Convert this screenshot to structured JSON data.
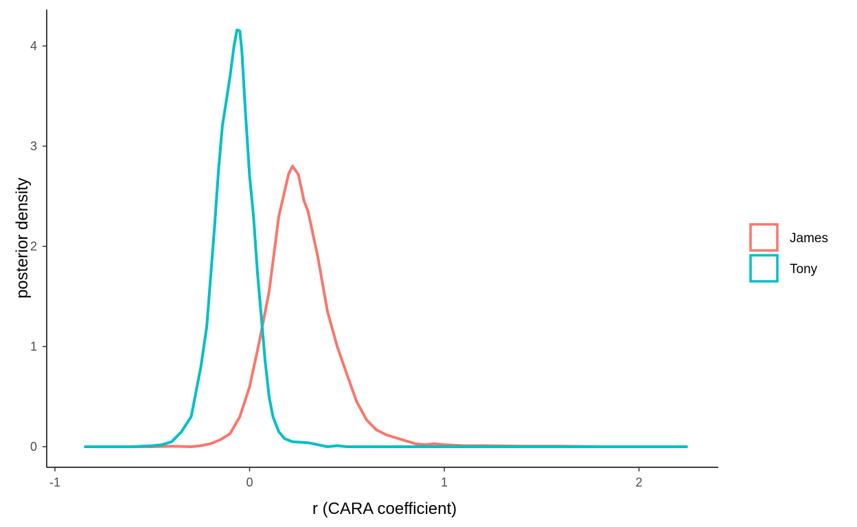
{
  "chart_data": {
    "type": "line",
    "title": "",
    "xlabel": "r (CARA coefficient)",
    "ylabel": "posterior density",
    "xlim": [
      -1,
      2.4
    ],
    "ylim": [
      -0.22,
      4.35
    ],
    "x_ticks": [
      -1,
      0,
      1,
      2
    ],
    "x_tick_labels": [
      "-1",
      "0",
      "1",
      "2"
    ],
    "y_ticks": [
      0,
      1,
      2,
      3,
      4
    ],
    "y_tick_labels": [
      "0",
      "1",
      "2",
      "3",
      "4"
    ],
    "grid": false,
    "legend_position": "right",
    "series": [
      {
        "name": "James",
        "color": "#F8766D",
        "points": [
          [
            -0.85,
            0.0
          ],
          [
            -0.6,
            0.0
          ],
          [
            -0.5,
            0.0
          ],
          [
            -0.4,
            0.005
          ],
          [
            -0.3,
            0.0
          ],
          [
            -0.25,
            0.01
          ],
          [
            -0.2,
            0.03
          ],
          [
            -0.15,
            0.07
          ],
          [
            -0.1,
            0.13
          ],
          [
            -0.05,
            0.3
          ],
          [
            0.0,
            0.6
          ],
          [
            0.05,
            1.05
          ],
          [
            0.1,
            1.55
          ],
          [
            0.13,
            2.0
          ],
          [
            0.15,
            2.3
          ],
          [
            0.18,
            2.55
          ],
          [
            0.2,
            2.72
          ],
          [
            0.22,
            2.8
          ],
          [
            0.25,
            2.72
          ],
          [
            0.28,
            2.45
          ],
          [
            0.3,
            2.35
          ],
          [
            0.35,
            1.9
          ],
          [
            0.4,
            1.35
          ],
          [
            0.45,
            1.0
          ],
          [
            0.5,
            0.72
          ],
          [
            0.55,
            0.45
          ],
          [
            0.6,
            0.27
          ],
          [
            0.65,
            0.17
          ],
          [
            0.7,
            0.12
          ],
          [
            0.75,
            0.09
          ],
          [
            0.8,
            0.06
          ],
          [
            0.85,
            0.03
          ],
          [
            0.9,
            0.02
          ],
          [
            0.95,
            0.03
          ],
          [
            1.0,
            0.02
          ],
          [
            1.1,
            0.01
          ],
          [
            1.2,
            0.01
          ],
          [
            1.4,
            0.005
          ],
          [
            1.6,
            0.005
          ],
          [
            1.8,
            0.0
          ],
          [
            2.0,
            0.0
          ],
          [
            2.25,
            0.0
          ]
        ]
      },
      {
        "name": "Tony",
        "color": "#00BFC4",
        "points": [
          [
            -0.85,
            0.0
          ],
          [
            -0.7,
            0.0
          ],
          [
            -0.6,
            0.0
          ],
          [
            -0.5,
            0.01
          ],
          [
            -0.45,
            0.02
          ],
          [
            -0.4,
            0.05
          ],
          [
            -0.35,
            0.15
          ],
          [
            -0.3,
            0.3
          ],
          [
            -0.28,
            0.5
          ],
          [
            -0.25,
            0.8
          ],
          [
            -0.22,
            1.2
          ],
          [
            -0.2,
            1.7
          ],
          [
            -0.18,
            2.2
          ],
          [
            -0.16,
            2.75
          ],
          [
            -0.14,
            3.2
          ],
          [
            -0.12,
            3.45
          ],
          [
            -0.1,
            3.7
          ],
          [
            -0.08,
            4.0
          ],
          [
            -0.065,
            4.16
          ],
          [
            -0.05,
            4.15
          ],
          [
            -0.04,
            3.95
          ],
          [
            -0.02,
            3.3
          ],
          [
            0.0,
            2.7
          ],
          [
            0.02,
            2.3
          ],
          [
            0.04,
            1.75
          ],
          [
            0.06,
            1.3
          ],
          [
            0.08,
            0.85
          ],
          [
            0.1,
            0.5
          ],
          [
            0.12,
            0.3
          ],
          [
            0.15,
            0.15
          ],
          [
            0.18,
            0.08
          ],
          [
            0.22,
            0.05
          ],
          [
            0.3,
            0.04
          ],
          [
            0.35,
            0.02
          ],
          [
            0.4,
            0.0
          ],
          [
            0.45,
            0.01
          ],
          [
            0.5,
            0.0
          ],
          [
            0.7,
            0.0
          ],
          [
            1.0,
            0.0
          ],
          [
            1.5,
            0.0
          ],
          [
            2.0,
            0.0
          ],
          [
            2.25,
            0.0
          ]
        ]
      }
    ]
  }
}
